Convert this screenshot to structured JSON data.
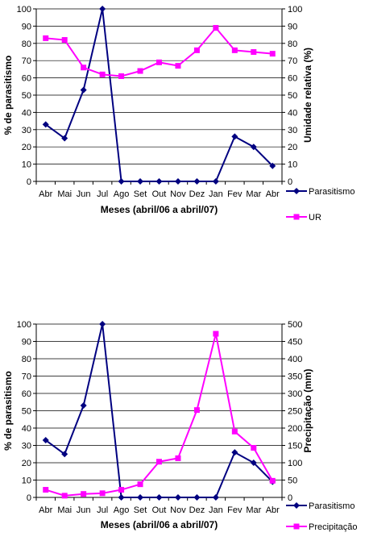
{
  "chart_data": [
    {
      "type": "line",
      "categories": [
        "Abr",
        "Mai",
        "Jun",
        "Jul",
        "Ago",
        "Set",
        "Out",
        "Nov",
        "Dez",
        "Jan",
        "Fev",
        "Mar",
        "Abr"
      ],
      "xlabel": "Meses (abril/06 a abril/07)",
      "ylabel": "% de parasitismo",
      "y2label": "Umidade relativa (%)",
      "ylim": [
        0,
        100
      ],
      "y2lim": [
        0,
        100
      ],
      "yticks": [
        "0",
        "10",
        "20",
        "30",
        "40",
        "50",
        "60",
        "70",
        "80",
        "90",
        "100"
      ],
      "y2ticks": [
        "0",
        "10",
        "20",
        "30",
        "40",
        "50",
        "60",
        "70",
        "80",
        "90",
        "100"
      ],
      "grid": true,
      "legend_position": "bottom-right",
      "series": [
        {
          "name": "Parasitismo",
          "axis": "left",
          "color": "#000080",
          "marker": "diamond",
          "values": [
            33,
            25,
            53,
            100,
            0,
            0,
            0,
            0,
            0,
            0,
            26,
            20,
            9
          ]
        },
        {
          "name": "UR",
          "axis": "right",
          "color": "#ff00ff",
          "marker": "square",
          "values": [
            83,
            82,
            66,
            62,
            61,
            64,
            69,
            67,
            76,
            89,
            76,
            75,
            74
          ]
        }
      ]
    },
    {
      "type": "line",
      "categories": [
        "Abr",
        "Mai",
        "Jun",
        "Jul",
        "Ago",
        "Set",
        "Out",
        "Nov",
        "Dez",
        "Jan",
        "Fev",
        "Mar",
        "Abr"
      ],
      "xlabel": "Meses (abril/06 a abril/07)",
      "ylabel": "% de parasitismo",
      "y2label": "Precipitação (mm)",
      "ylim": [
        0,
        100
      ],
      "y2lim": [
        0,
        500
      ],
      "yticks": [
        "0",
        "10",
        "20",
        "30",
        "40",
        "50",
        "60",
        "70",
        "80",
        "90",
        "100"
      ],
      "y2ticks": [
        "0",
        "50",
        "100",
        "150",
        "200",
        "250",
        "300",
        "350",
        "400",
        "450",
        "500"
      ],
      "grid": true,
      "legend_position": "bottom-right",
      "series": [
        {
          "name": "Parasitismo",
          "axis": "left",
          "color": "#000080",
          "marker": "diamond",
          "values": [
            33,
            25,
            53,
            100,
            0,
            0,
            0,
            0,
            0,
            0,
            26,
            20,
            9
          ]
        },
        {
          "name": "Precipitação",
          "axis": "right",
          "color": "#ff00ff",
          "marker": "square",
          "values": [
            22,
            5,
            10,
            12,
            22,
            38,
            103,
            113,
            252,
            472,
            190,
            143,
            48
          ]
        }
      ]
    }
  ]
}
